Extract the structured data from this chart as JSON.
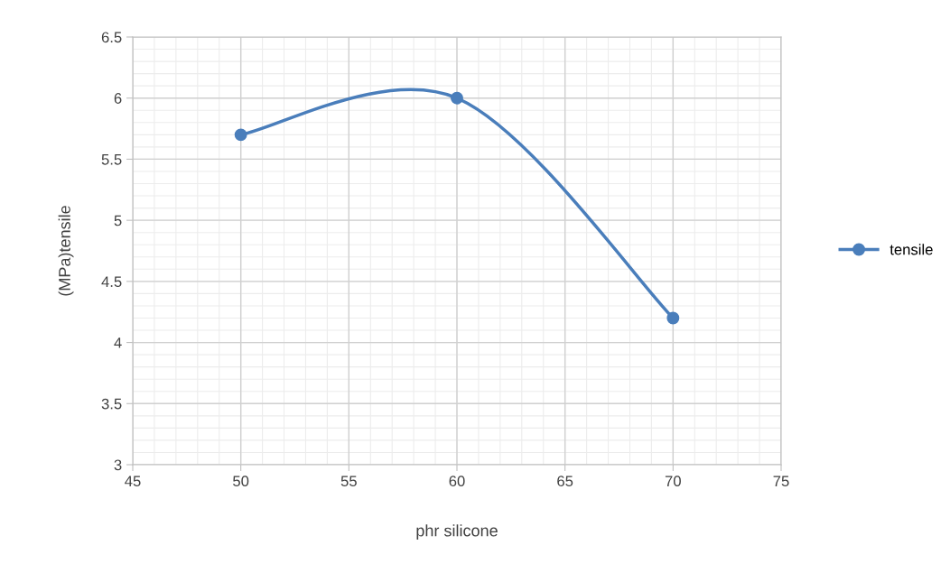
{
  "chart_data": {
    "type": "line",
    "xlabel": "phr silicone",
    "ylabel": "(MPa)tensile",
    "x": [
      50,
      60,
      70
    ],
    "series": [
      {
        "name": "tensile",
        "color": "#4a7ebb",
        "values": [
          5.7,
          6.0,
          4.2
        ]
      }
    ],
    "xlim": [
      45,
      75
    ],
    "xticks": [
      45,
      50,
      55,
      60,
      65,
      70,
      75
    ],
    "ylim": [
      3,
      6.5
    ],
    "yticks": [
      3,
      {
        "value": 3.5,
        "label": "3.5"
      },
      4,
      {
        "value": 4.5,
        "label": "4.5"
      },
      5,
      {
        "value": 5.5,
        "label": "5.5"
      },
      6,
      {
        "value": 6.5,
        "label": "6.5"
      }
    ],
    "grid": true,
    "legend": "right",
    "marker": "circle",
    "line_style": "solid"
  }
}
